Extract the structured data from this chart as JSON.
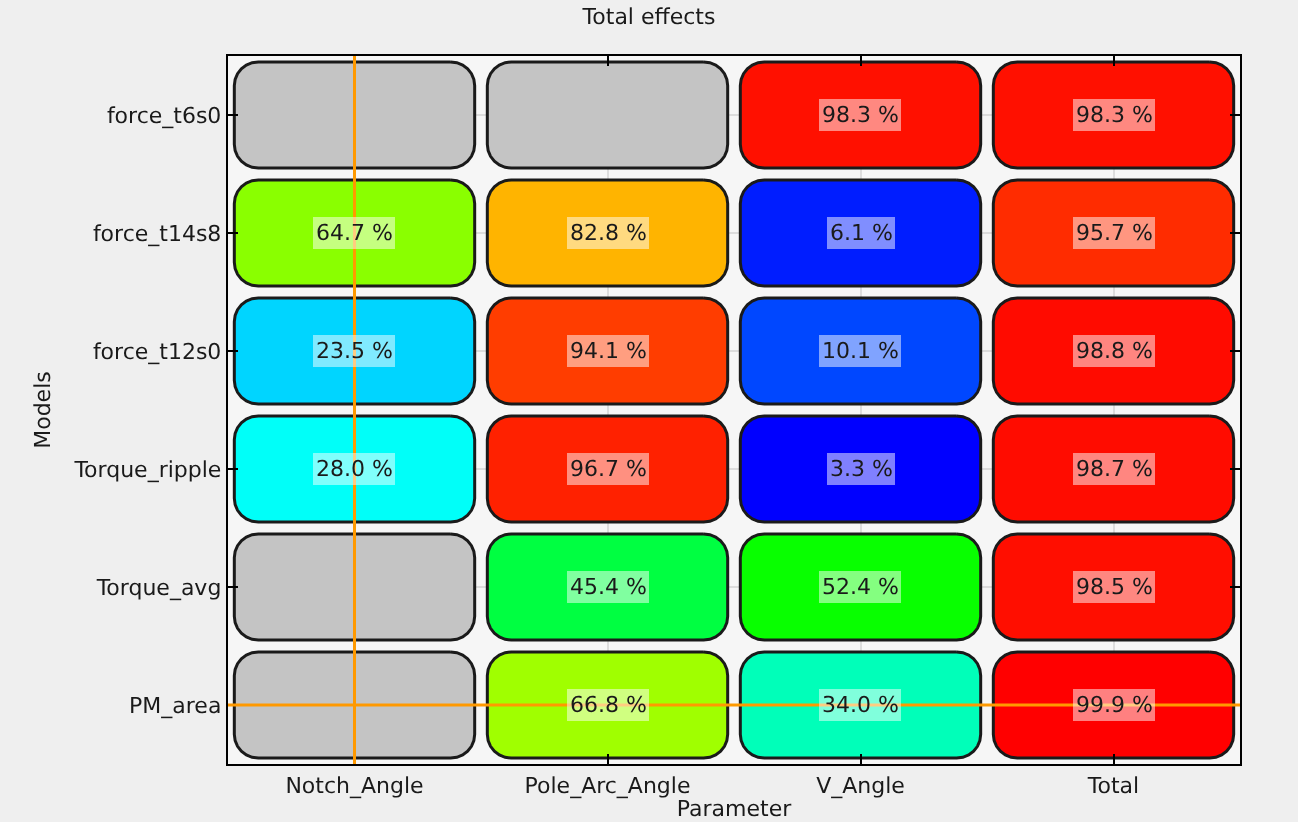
{
  "chart_data": {
    "type": "heatmap",
    "title": "Total effects",
    "xlabel": "Parameter",
    "ylabel": "Models",
    "categories": [
      "Notch_Angle",
      "Pole_Arc_Angle",
      "V_Angle",
      "Total"
    ],
    "y_categories": [
      "force_t6s0",
      "force_t14s8",
      "force_t12s0",
      "Torque_ripple",
      "Torque_avg",
      "PM_area"
    ],
    "cells": [
      [
        null,
        null,
        98.3,
        98.3
      ],
      [
        64.7,
        82.8,
        6.1,
        95.7
      ],
      [
        23.5,
        94.1,
        10.1,
        98.8
      ],
      [
        28.0,
        96.7,
        3.3,
        98.7
      ],
      [
        null,
        45.4,
        52.4,
        98.5
      ],
      [
        null,
        66.8,
        34.0,
        99.9
      ]
    ],
    "cell_labels": [
      [
        null,
        null,
        "98.3 %",
        "98.3 %"
      ],
      [
        "64.7 %",
        "82.8 %",
        "6.1 %",
        "95.7 %"
      ],
      [
        "23.5 %",
        "94.1 %",
        "10.1 %",
        "98.8 %"
      ],
      [
        "28.0 %",
        "96.7 %",
        "3.3 %",
        "98.7 %"
      ],
      [
        null,
        "45.4 %",
        "52.4 %",
        "98.5 %"
      ],
      [
        null,
        "66.8 %",
        "34.0 %",
        "99.9 %"
      ]
    ],
    "grid": true,
    "ref_lines": [
      {
        "axis": "x",
        "value": "Notch_Angle",
        "color": "#ff9900"
      },
      {
        "axis": "y",
        "value": "PM_area",
        "color": "#ff9900"
      }
    ]
  }
}
